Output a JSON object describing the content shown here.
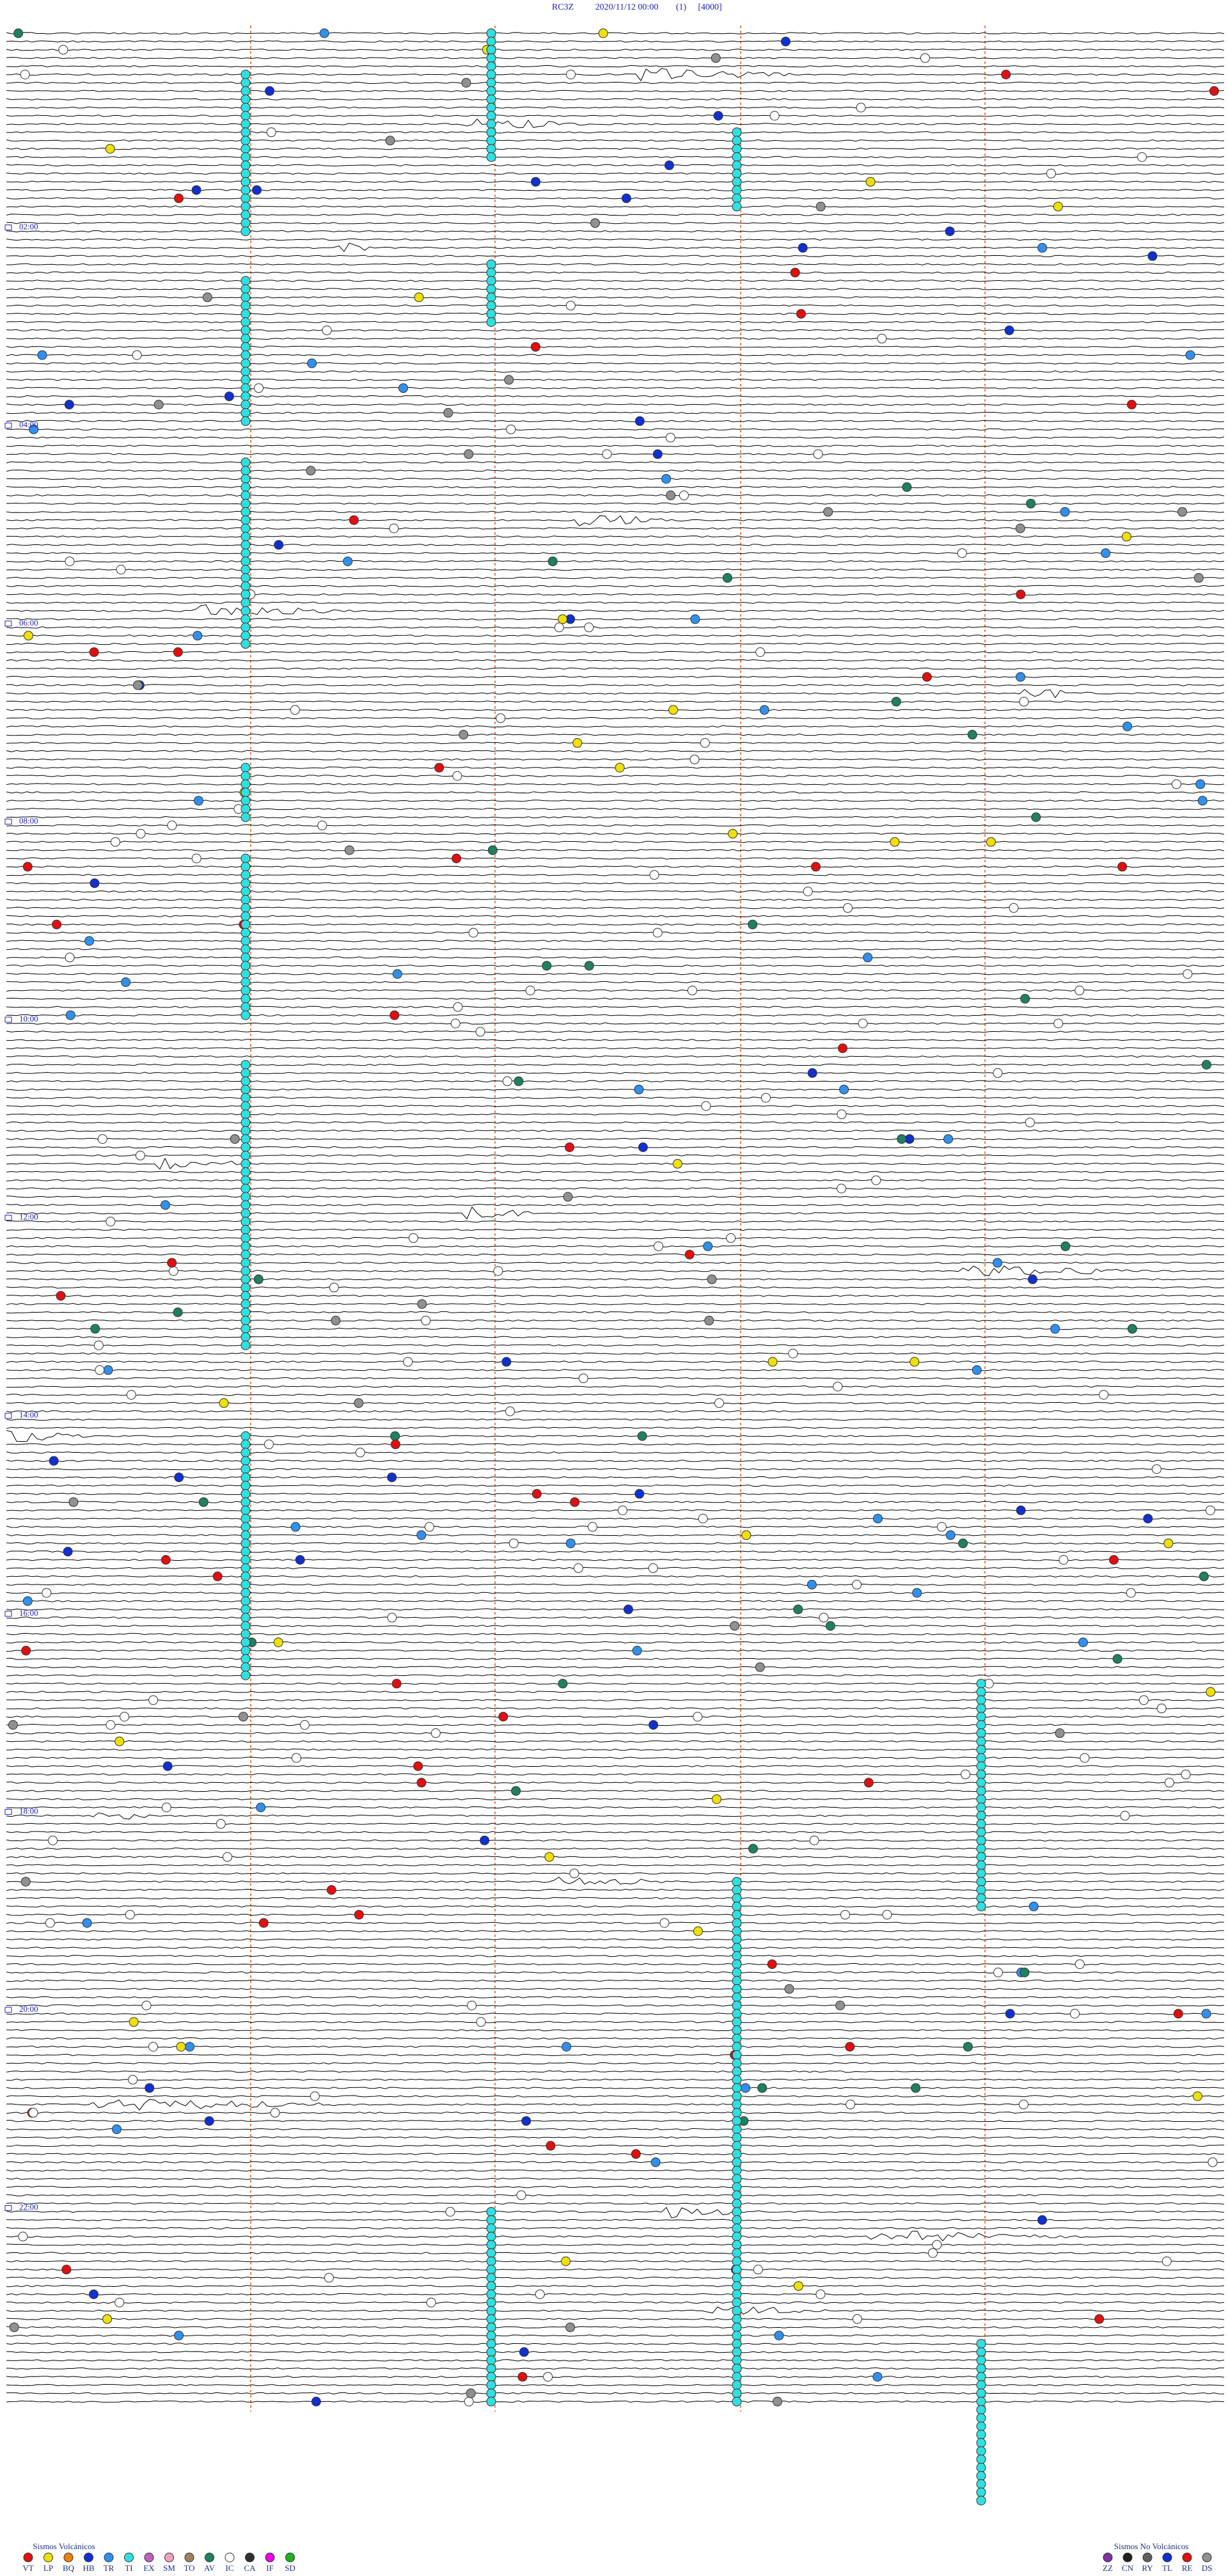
{
  "header": {
    "station": "RC3Z",
    "datetime": "2020/11/12 00:00",
    "channel": "(1)",
    "scale": "[4000]"
  },
  "time_labels": [
    "02:00",
    "04:00",
    "06:00",
    "08:00",
    "10:00",
    "12:00",
    "14:00",
    "16:00",
    "18:00",
    "20:00",
    "22:00"
  ],
  "legend": {
    "volcanic": {
      "title": "Sismos Volcánicos",
      "items": [
        {
          "code": "VT",
          "color": "#e01010"
        },
        {
          "code": "LP",
          "color": "#f0e000"
        },
        {
          "code": "BQ",
          "color": "#f08000"
        },
        {
          "code": "HB",
          "color": "#1030d0"
        },
        {
          "code": "TR",
          "color": "#3090f0"
        },
        {
          "code": "TI",
          "color": "#30e0e0"
        },
        {
          "code": "EX",
          "color": "#c060c0"
        },
        {
          "code": "SM",
          "color": "#f0a0c0"
        },
        {
          "code": "TO",
          "color": "#a08060"
        },
        {
          "code": "AV",
          "color": "#208060"
        },
        {
          "code": "IC",
          "color": "#ffffff"
        },
        {
          "code": "CA",
          "color": "#303030"
        },
        {
          "code": "IF",
          "color": "#f000f0"
        },
        {
          "code": "SD",
          "color": "#20b020"
        }
      ]
    },
    "non_volcanic": {
      "title": "Sismos No Volcánicos",
      "items": [
        {
          "code": "ZZ",
          "color": "#8030a0"
        },
        {
          "code": "CN",
          "color": "#202020"
        },
        {
          "code": "RY",
          "color": "#606060"
        },
        {
          "code": "TL",
          "color": "#1030d0"
        },
        {
          "code": "RE",
          "color": "#e01010"
        },
        {
          "code": "DS",
          "color": "#909090"
        }
      ]
    }
  }
}
